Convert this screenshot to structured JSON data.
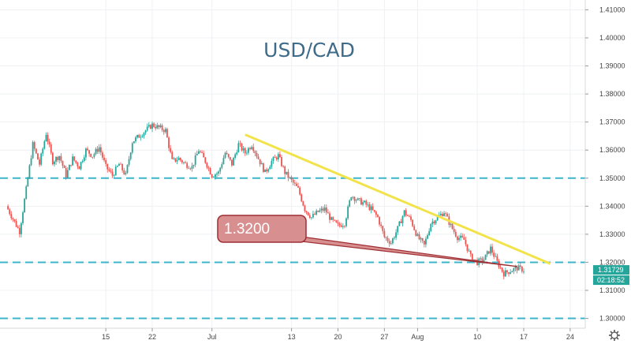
{
  "chart_data": {
    "type": "candlestick",
    "title": "USD/CAD",
    "ylim": [
      1.2965,
      1.4135
    ],
    "y_ticks": [
      "1.41000",
      "1.40000",
      "1.39000",
      "1.38000",
      "1.37000",
      "1.36000",
      "1.35000",
      "1.34000",
      "1.33000",
      "1.32000",
      "1.31000",
      "1.30000"
    ],
    "x_ticks": [
      {
        "label": "15",
        "day": 15
      },
      {
        "label": "22",
        "day": 22
      },
      {
        "label": "Jul",
        "day": 31
      },
      {
        "label": "13",
        "day": 43
      },
      {
        "label": "20",
        "day": 50
      },
      {
        "label": "27",
        "day": 57
      },
      {
        "label": "Aug",
        "day": 62
      },
      {
        "label": "10",
        "day": 71
      },
      {
        "label": "17",
        "day": 78
      },
      {
        "label": "24",
        "day": 85
      }
    ],
    "price_path": [
      [
        0,
        1.34
      ],
      [
        2,
        1.331
      ],
      [
        3,
        1.346
      ],
      [
        4,
        1.362
      ],
      [
        5,
        1.355
      ],
      [
        6,
        1.366
      ],
      [
        7,
        1.356
      ],
      [
        8,
        1.358
      ],
      [
        9,
        1.351
      ],
      [
        10,
        1.357
      ],
      [
        11,
        1.354
      ],
      [
        12,
        1.36
      ],
      [
        13,
        1.358
      ],
      [
        14,
        1.361
      ],
      [
        15,
        1.354
      ],
      [
        16,
        1.351
      ],
      [
        17,
        1.355
      ],
      [
        18,
        1.351
      ],
      [
        19,
        1.363
      ],
      [
        20,
        1.365
      ],
      [
        21,
        1.367
      ],
      [
        22,
        1.369
      ],
      [
        23,
        1.368
      ],
      [
        24,
        1.367
      ],
      [
        25,
        1.356
      ],
      [
        26,
        1.357
      ],
      [
        27,
        1.355
      ],
      [
        28,
        1.354
      ],
      [
        29,
        1.36
      ],
      [
        30,
        1.356
      ],
      [
        31,
        1.351
      ],
      [
        32,
        1.352
      ],
      [
        33,
        1.359
      ],
      [
        34,
        1.355
      ],
      [
        35,
        1.362
      ],
      [
        36,
        1.359
      ],
      [
        37,
        1.362
      ],
      [
        38,
        1.357
      ],
      [
        39,
        1.352
      ],
      [
        40,
        1.356
      ],
      [
        41,
        1.358
      ],
      [
        42,
        1.352
      ],
      [
        43,
        1.349
      ],
      [
        44,
        1.346
      ],
      [
        45,
        1.339
      ],
      [
        46,
        1.336
      ],
      [
        47,
        1.338
      ],
      [
        48,
        1.339
      ],
      [
        49,
        1.335
      ],
      [
        50,
        1.333
      ],
      [
        51,
        1.334
      ],
      [
        52,
        1.344
      ],
      [
        53,
        1.342
      ],
      [
        54,
        1.341
      ],
      [
        55,
        1.339
      ],
      [
        56,
        1.336
      ],
      [
        57,
        1.329
      ],
      [
        58,
        1.327
      ],
      [
        59,
        1.332
      ],
      [
        60,
        1.338
      ],
      [
        61,
        1.335
      ],
      [
        62,
        1.329
      ],
      [
        63,
        1.326
      ],
      [
        64,
        1.334
      ],
      [
        65,
        1.336
      ],
      [
        66,
        1.338
      ],
      [
        67,
        1.333
      ],
      [
        68,
        1.329
      ],
      [
        69,
        1.328
      ],
      [
        70,
        1.322
      ],
      [
        71,
        1.32
      ],
      [
        72,
        1.321
      ],
      [
        73,
        1.325
      ],
      [
        74,
        1.32
      ],
      [
        75,
        1.316
      ],
      [
        76,
        1.317
      ],
      [
        77,
        1.318
      ],
      [
        78,
        1.3173
      ]
    ],
    "horizontal_levels": [
      1.35,
      1.32,
      1.3
    ],
    "trendline": {
      "from": {
        "day": 36,
        "price": 1.3655
      },
      "to": {
        "day": 82,
        "price": 1.3195
      }
    },
    "callout": {
      "label": "1.3200",
      "day": 77,
      "price": 1.3185
    },
    "last_price": "1.31729",
    "countdown": "02:18:52",
    "colors": {
      "up_candle": "#26a69a",
      "down_candle": "#ef5350",
      "level_line": "#3bb5c9",
      "trendline": "#f2e34a",
      "callout_fill": "#d88f90",
      "callout_border": "#9e2f33",
      "title": "#3f6b8a",
      "last_price_badge": "#26a69a",
      "grid": "#eef0f3"
    },
    "grid": true
  },
  "ui": {
    "settings_icon": "gear-icon"
  }
}
